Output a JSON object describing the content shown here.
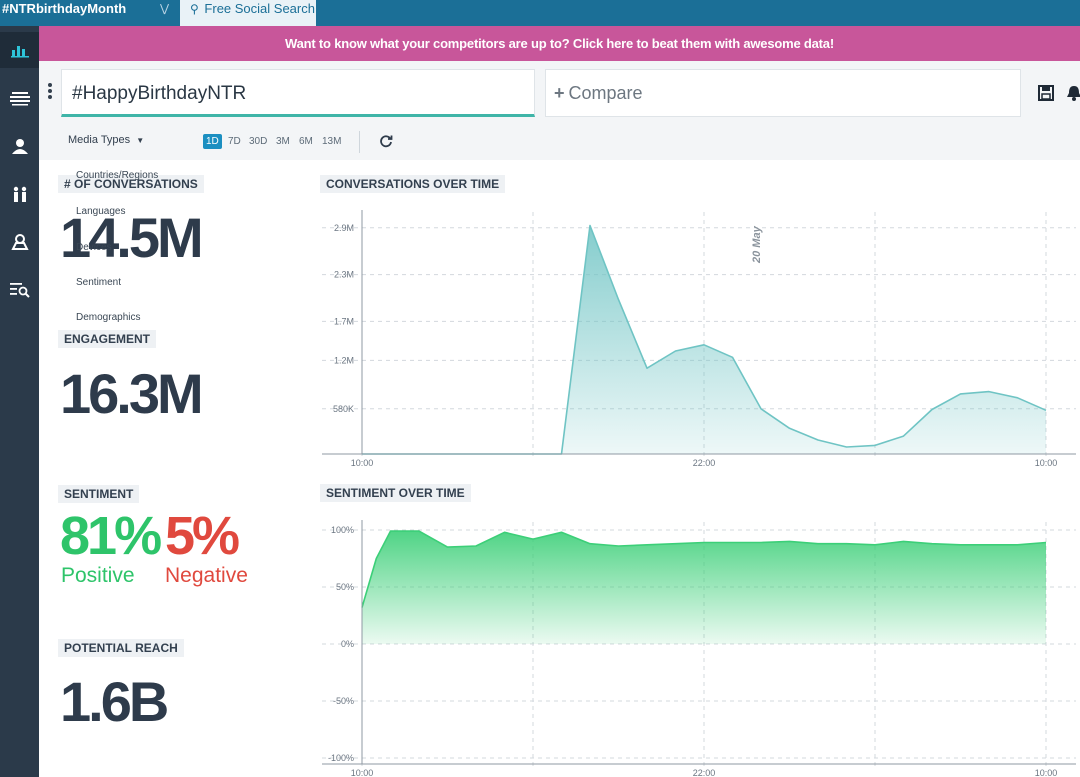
{
  "tabs": {
    "left_label": "#NTRbirthdayMonth",
    "active_label": "Free Social Search"
  },
  "banner": {
    "text": "Want to know what your competitors are up to? Click here to beat them with awesome data!"
  },
  "search": {
    "query": "#HappyBirthdayNTR",
    "compare_label": "Compare",
    "media_types_label": "Media Types",
    "ranges": [
      "1D",
      "7D",
      "30D",
      "3M",
      "6M",
      "13M"
    ],
    "active_range": "1D"
  },
  "dropdown": {
    "items": [
      "Countries/Regions",
      "Languages",
      "Devices",
      "Sentiment",
      "Demographics"
    ]
  },
  "stats": {
    "conversations_label": "# OF CONVERSATIONS",
    "conversations_value": "14.5M",
    "engagement_label": "ENGAGEMENT",
    "engagement_value": "16.3M",
    "sentiment_label": "SENTIMENT",
    "positive_value": "81%",
    "positive_label": "Positive",
    "negative_value": "5%",
    "negative_label": "Negative",
    "reach_label": "POTENTIAL REACH",
    "reach_value": "1.6B"
  },
  "colors": {
    "accent": "#1b6f97",
    "banner": "#c8569a",
    "positive": "#2ec46a",
    "negative": "#e0493e",
    "conversations_line": "#6fc4c4",
    "sentiment_line": "#3ccf78"
  },
  "chart_data": [
    {
      "type": "area",
      "title": "CONVERSATIONS OVER TIME",
      "annotation": "20 May",
      "y_ticks": [
        "2.9M",
        "2.3M",
        "1.7M",
        "1.2M",
        "580K"
      ],
      "x_ticks": [
        "10:00",
        "22:00",
        "10:00"
      ],
      "ylim": [
        0,
        3000000
      ],
      "x": [
        0,
        1,
        2,
        3,
        4,
        5,
        6,
        7,
        8,
        9,
        10,
        11,
        12,
        13,
        14,
        15,
        16,
        17,
        18,
        19,
        20,
        21,
        22,
        23,
        24
      ],
      "values": [
        0,
        0,
        0,
        0,
        0,
        0,
        0,
        0,
        2930000,
        1980000,
        1100000,
        1320000,
        1400000,
        1240000,
        580000,
        330000,
        180000,
        90000,
        110000,
        230000,
        570000,
        770000,
        800000,
        720000,
        560000
      ]
    },
    {
      "type": "area",
      "title": "SENTIMENT OVER TIME",
      "y_ticks": [
        "100%",
        "50%",
        "0%",
        "-50%",
        "-100%"
      ],
      "x_ticks": [
        "10:00",
        "22:00",
        "10:00"
      ],
      "ylim": [
        -100,
        100
      ],
      "x": [
        0,
        0.5,
        1,
        2,
        3,
        4,
        5,
        6,
        7,
        8,
        9,
        10,
        11,
        12,
        13,
        14,
        15,
        16,
        17,
        18,
        19,
        20,
        21,
        22,
        23,
        24
      ],
      "values": [
        32,
        75,
        99,
        99,
        85,
        86,
        98,
        92,
        98,
        88,
        86,
        87,
        88,
        89,
        89,
        89,
        90,
        88,
        88,
        87,
        90,
        88,
        87,
        87,
        87,
        89
      ]
    }
  ]
}
